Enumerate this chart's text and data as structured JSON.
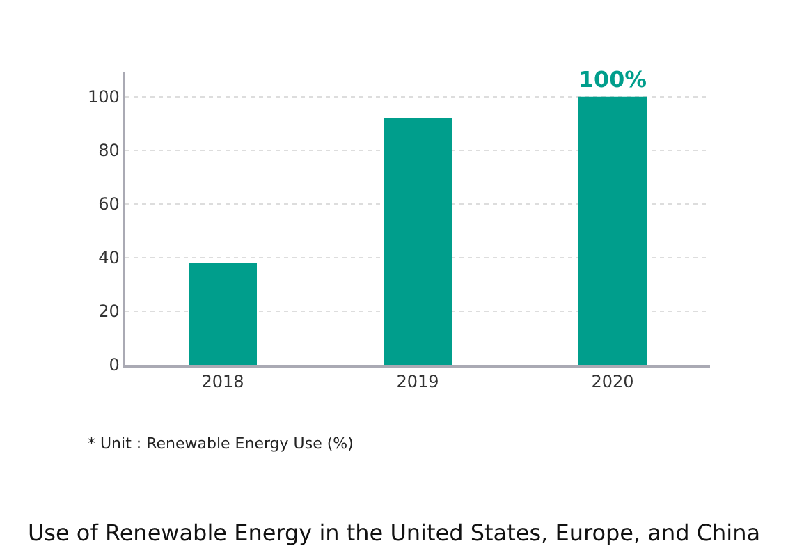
{
  "chart_data": {
    "type": "bar",
    "title": "Use of Renewable Energy in the United States, Europe, and China",
    "categories": [
      "2018",
      "2019",
      "2020"
    ],
    "values": [
      38,
      92,
      100
    ],
    "value_labels": [
      null,
      null,
      "100%"
    ],
    "color": "#009e8c",
    "ylim": [
      0,
      109
    ],
    "yticks": [
      0,
      20,
      40,
      60,
      80,
      100
    ],
    "grid": "y",
    "legend": false,
    "annotations": [
      "* Unit : Renewable Energy Use (%)"
    ]
  }
}
